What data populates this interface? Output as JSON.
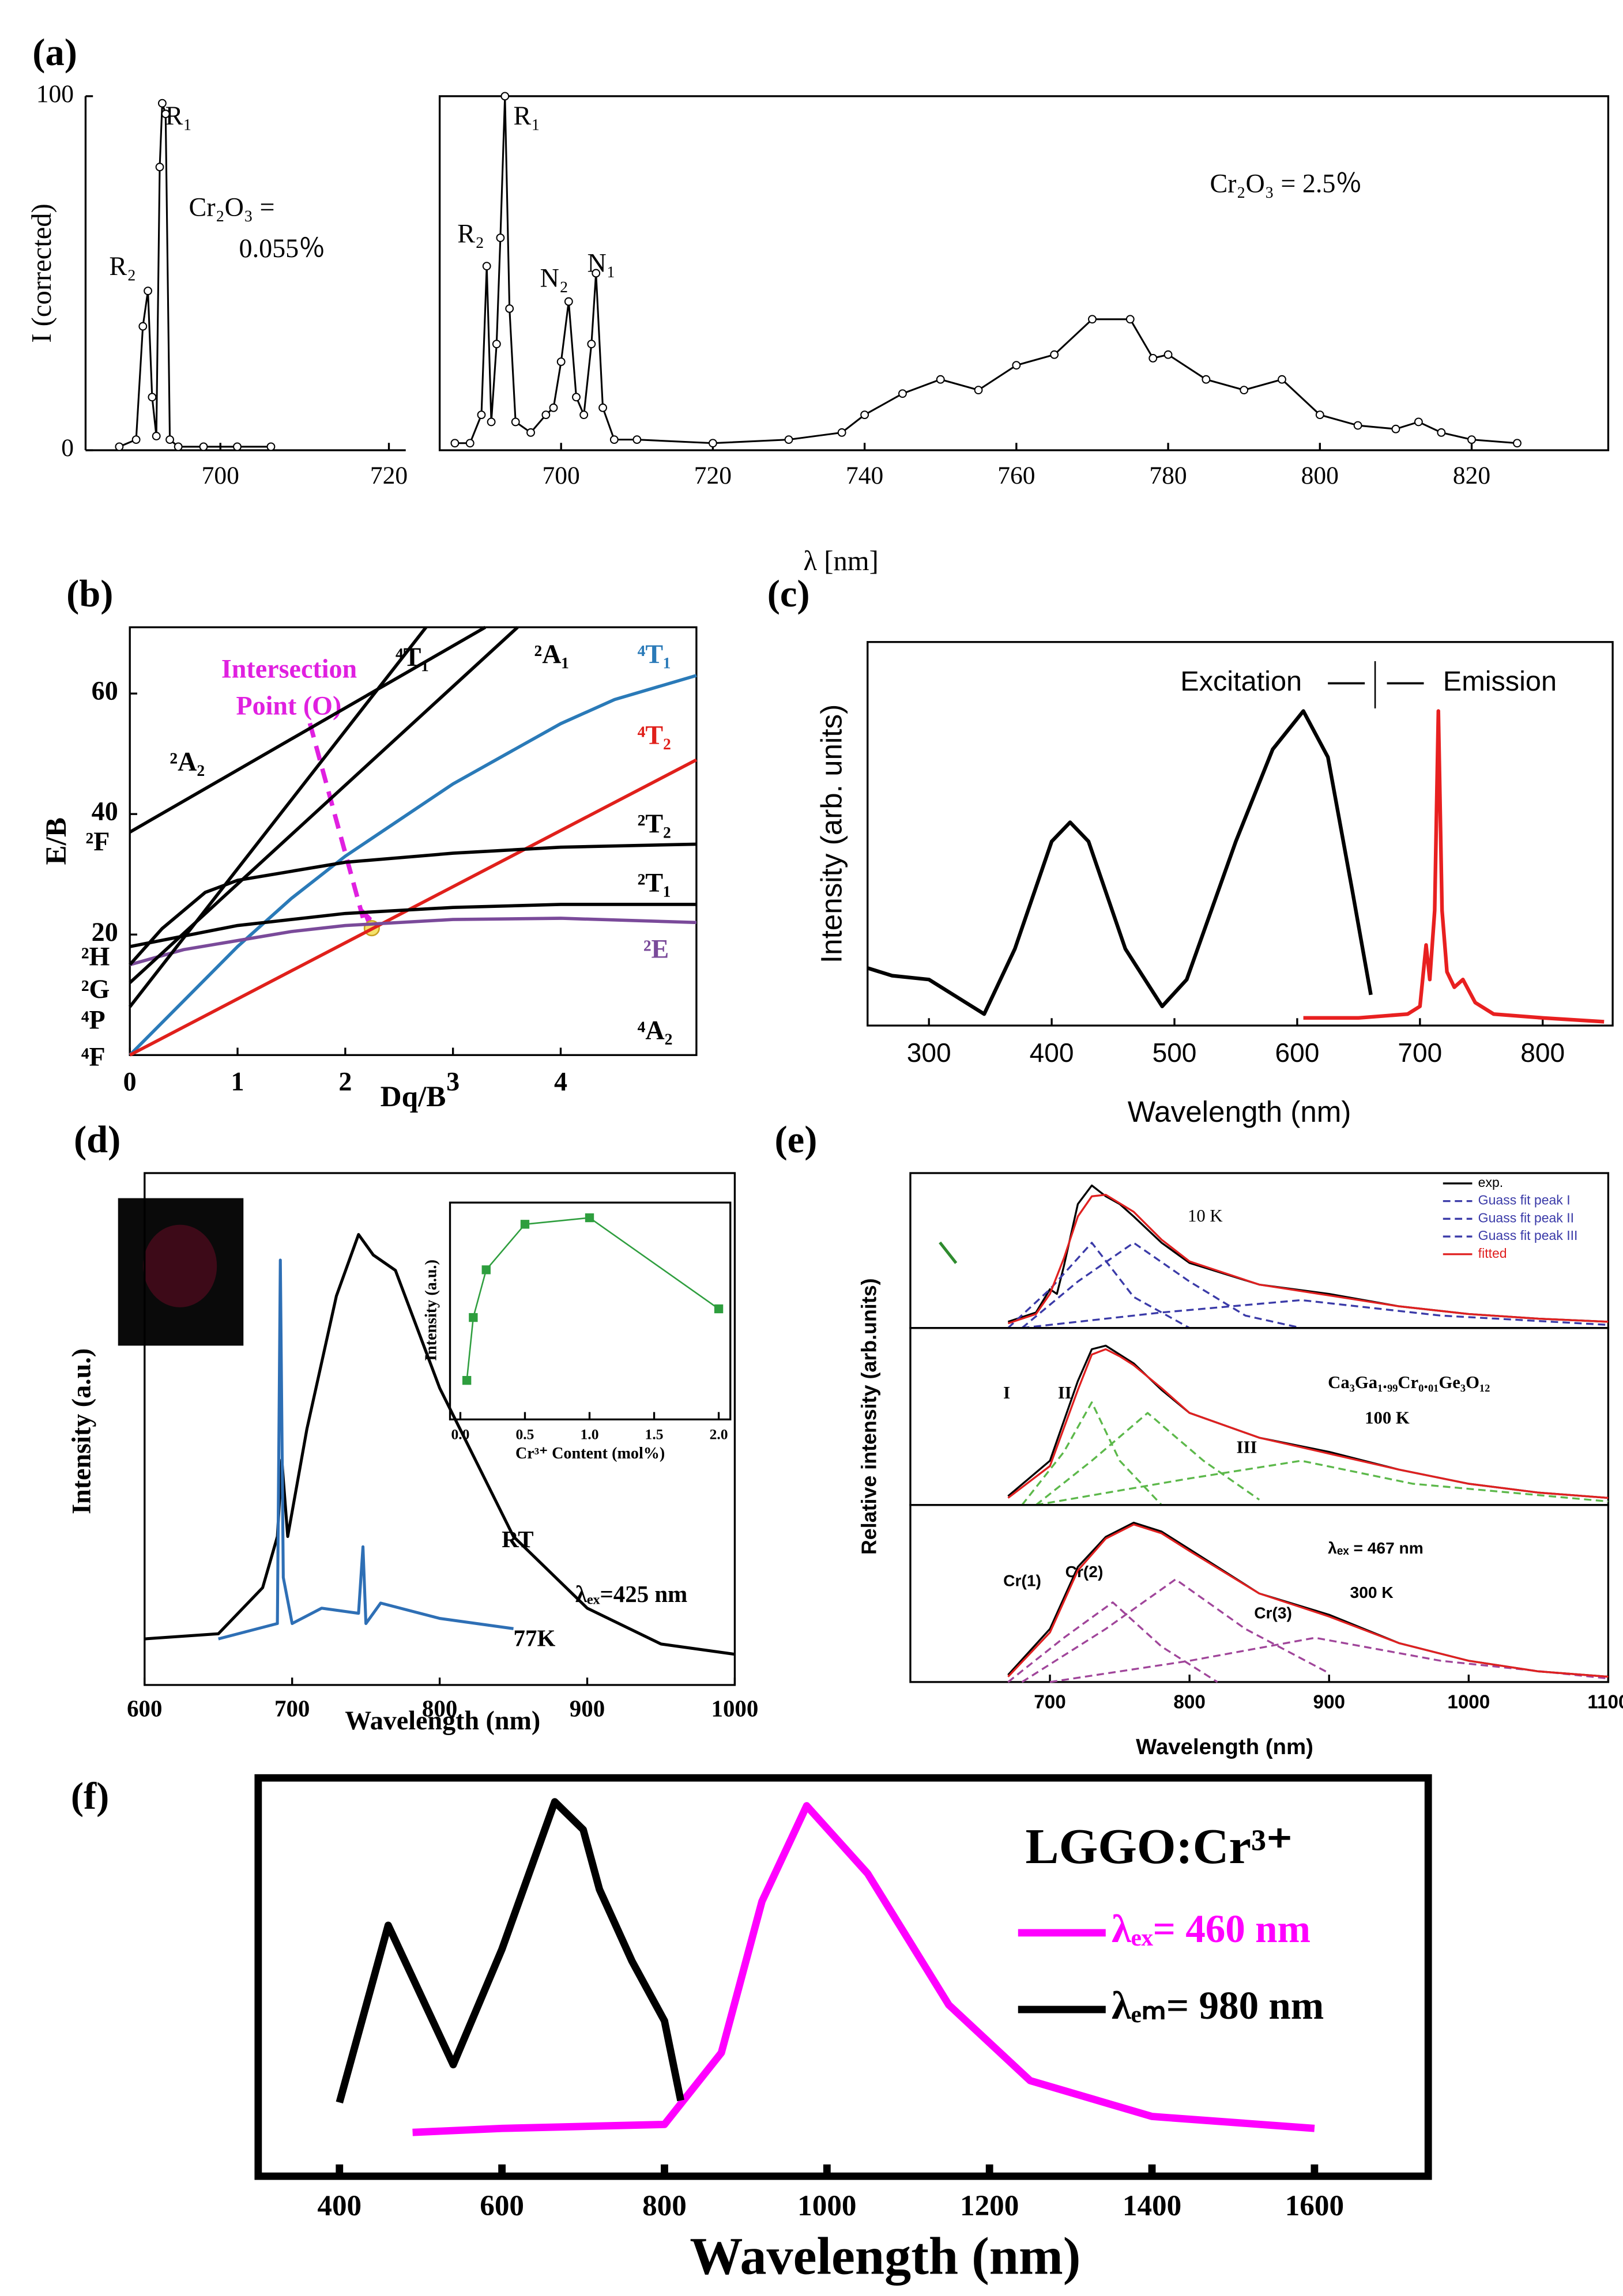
{
  "chart_data": [
    {
      "type": "line",
      "panel": "(a)",
      "ylabel": "I (corrected)",
      "xlim": [
        684,
        722
      ],
      "ylim": [
        0,
        100
      ],
      "xticks": [
        700,
        720
      ],
      "yticks": [
        0,
        100
      ],
      "annotations": [
        "R₁",
        "R₂",
        "Cr₂O₃ =",
        "0.055％"
      ],
      "series": [
        {
          "color": "#000",
          "marker": "circle",
          "x": [
            688,
            690,
            690.8,
            691.4,
            691.9,
            692.4,
            692.8,
            693.1,
            693.5,
            694,
            695,
            698,
            702,
            706
          ],
          "values": [
            1,
            3,
            35,
            45,
            15,
            4,
            80,
            98,
            95,
            3,
            1,
            1,
            1,
            1
          ]
        }
      ]
    },
    {
      "type": "line",
      "xlabel": "λ [nm]",
      "xlim": [
        684,
        838
      ],
      "ylim": [
        0,
        100
      ],
      "xticks": [
        700,
        720,
        740,
        760,
        780,
        800,
        820
      ],
      "annotations": [
        "R₁",
        "R₂",
        "N₂",
        "N₁",
        "Cr₂O₃ = 2.5％"
      ],
      "series": [
        {
          "color": "#000",
          "marker": "circle",
          "x": [
            686,
            688,
            689.5,
            690.2,
            690.8,
            691.5,
            692,
            692.6,
            693.2,
            694,
            696,
            698,
            699,
            700,
            701,
            702,
            703,
            704,
            704.6,
            705.5,
            707,
            710,
            720,
            730,
            737,
            740,
            745,
            750,
            755,
            760,
            765,
            770,
            775,
            778,
            780,
            785,
            790,
            795,
            800,
            805,
            810,
            813,
            816,
            820,
            826
          ],
          "values": [
            2,
            2,
            10,
            52,
            8,
            30,
            60,
            100,
            40,
            8,
            5,
            10,
            12,
            25,
            42,
            15,
            10,
            30,
            50,
            12,
            3,
            3,
            2,
            3,
            5,
            10,
            16,
            20,
            17,
            24,
            27,
            37,
            37,
            26,
            27,
            20,
            17,
            20,
            10,
            7,
            6,
            8,
            5,
            3,
            2
          ]
        }
      ]
    },
    {
      "type": "line",
      "panel": "(b)",
      "xlabel": "Dq/B",
      "ylabel": "E/B",
      "xlim": [
        0,
        5.26
      ],
      "ylim": [
        0,
        71
      ],
      "xticks": [
        0,
        1,
        2,
        3,
        4
      ],
      "yticks": [
        20,
        40,
        60
      ],
      "annotations": [
        "⁴T₁",
        "²A₁",
        {
          "text": "⁴T₁",
          "color": "#2a7ab8"
        },
        {
          "text": "Intersection",
          "color": "#e020e0"
        },
        {
          "text": "Point (O)",
          "color": "#e020e0"
        },
        {
          "text": "⁴T₂",
          "color": "#e0201b"
        },
        "²A₂",
        "²F",
        "²T₂",
        "²T₁",
        "²H",
        {
          "text": "²E",
          "color": "#7a4a9a"
        },
        "²G",
        "⁴P",
        "⁴A₂",
        "⁴F"
      ],
      "series": [
        {
          "color": "#2a7ab8",
          "x": [
            0,
            0.5,
            1,
            1.5,
            2,
            2.5,
            3,
            3.5,
            4,
            4.5,
            5.26
          ],
          "values": [
            0,
            9,
            18,
            26,
            33,
            39,
            45,
            50,
            55,
            59,
            63
          ]
        },
        {
          "color": "#e0201b",
          "x": [
            0,
            5.26
          ],
          "values": [
            0,
            49
          ]
        },
        {
          "color": "#7a4a9a",
          "x": [
            0,
            0.5,
            1,
            1.5,
            2,
            3,
            4,
            5.26
          ],
          "values": [
            15,
            17.5,
            19,
            20.5,
            21.5,
            22.5,
            22.7,
            22
          ]
        },
        {
          "color": "#000",
          "x": [
            0,
            1,
            2,
            3,
            4,
            5.26
          ],
          "values": [
            18,
            21.5,
            23.5,
            24.5,
            25,
            25
          ]
        },
        {
          "color": "#000",
          "x": [
            0,
            0.3,
            0.7,
            1,
            1.5,
            2,
            3,
            4,
            5.26
          ],
          "values": [
            15,
            21,
            27,
            29,
            30.5,
            32,
            33.5,
            34.5,
            35
          ]
        },
        {
          "color": "#000",
          "x": [
            0,
            3.3
          ],
          "values": [
            37,
            71
          ]
        },
        {
          "color": "#000",
          "x": [
            0,
            2.75
          ],
          "values": [
            8,
            71
          ]
        },
        {
          "color": "#000",
          "x": [
            0,
            3.6
          ],
          "values": [
            12,
            71
          ]
        }
      ]
    },
    {
      "type": "line",
      "panel": "(c)",
      "xlabel": "Wavelength (nm)",
      "ylabel": "Intensity (arb. units)",
      "xlim": [
        250,
        857
      ],
      "ylim": [
        0,
        100
      ],
      "xticks": [
        300,
        400,
        500,
        600,
        700,
        800
      ],
      "annotations": [
        "Excitation",
        "Emission"
      ],
      "series": [
        {
          "color": "#000",
          "x": [
            250,
            270,
            300,
            330,
            345,
            370,
            400,
            415,
            430,
            460,
            490,
            510,
            550,
            580,
            605,
            625,
            645,
            660
          ],
          "values": [
            15,
            13,
            12,
            6,
            3,
            20,
            48,
            53,
            48,
            20,
            5,
            12,
            48,
            72,
            82,
            70,
            35,
            8
          ]
        },
        {
          "color": "#e82020",
          "x": [
            605,
            650,
            690,
            700,
            705,
            708,
            712,
            715,
            718,
            722,
            728,
            735,
            745,
            760,
            800,
            850
          ],
          "values": [
            2,
            2,
            3,
            5,
            21,
            12,
            30,
            82,
            30,
            14,
            10,
            12,
            6,
            3,
            2,
            1
          ]
        }
      ]
    },
    {
      "type": "line",
      "panel": "(d)",
      "xlabel": "Wavelength (nm)",
      "ylabel": "Intensity (a.u.)",
      "xlim": [
        600,
        1000
      ],
      "ylim": [
        0,
        100
      ],
      "xticks": [
        600,
        700,
        800,
        900,
        1000
      ],
      "annotations": [
        "RT",
        "77K",
        "λₑₓ=425 nm"
      ],
      "series": [
        {
          "color": "#000",
          "x": [
            600,
            650,
            680,
            690,
            693,
            697,
            710,
            730,
            745,
            755,
            770,
            800,
            850,
            900,
            950,
            1000
          ],
          "values": [
            9,
            10,
            19,
            29,
            44,
            29,
            50,
            76,
            88,
            84,
            81,
            58,
            29,
            15,
            8,
            6
          ]
        },
        {
          "color": "#2e6fb5",
          "x": [
            650,
            690,
            692,
            694,
            700,
            720,
            745,
            748,
            750,
            760,
            800,
            850
          ],
          "values": [
            9,
            12,
            83,
            21,
            12,
            15,
            14,
            27,
            12,
            16,
            13,
            11
          ]
        }
      ]
    },
    {
      "type": "line",
      "xlabel": "Cr³⁺ Content (mol%)",
      "ylabel": "Intensity (a.u.)",
      "xlim": [
        -0.08,
        2.09
      ],
      "ylim": [
        0,
        100
      ],
      "xticks": [
        {
          "value": 0,
          "label": "0.0"
        },
        {
          "value": 0.5,
          "label": "0.5"
        },
        {
          "value": 1,
          "label": "1.0"
        },
        {
          "value": 1.5,
          "label": "1.5"
        },
        {
          "value": 2,
          "label": "2.0"
        }
      ],
      "series": [
        {
          "color": "#2e9e3e",
          "marker": "square",
          "x": [
            0.05,
            0.1,
            0.2,
            0.5,
            1.0,
            2.0
          ],
          "values": [
            18,
            47,
            69,
            90,
            93,
            51
          ]
        }
      ]
    },
    {
      "type": "line",
      "panel": "(e)",
      "xlim": [
        600,
        1100
      ],
      "ylim": [
        0,
        100
      ],
      "annotations": [
        "10 K"
      ],
      "legend": "upper right",
      "series": [
        {
          "name": "exp.",
          "color": "#000",
          "x": [
            670,
            690,
            700,
            705,
            710,
            720,
            730,
            740,
            750,
            760,
            780,
            800,
            850,
            900,
            950,
            1000,
            1050,
            1100
          ],
          "values": [
            4,
            10,
            25,
            22,
            40,
            80,
            92,
            85,
            80,
            72,
            55,
            42,
            28,
            22,
            14,
            9,
            6,
            4
          ]
        },
        {
          "name": "Guass fit peak I",
          "color": "#3a3aa8",
          "dash": true,
          "x": [
            670,
            700,
            730,
            760,
            800
          ],
          "values": [
            0,
            25,
            55,
            20,
            0
          ]
        },
        {
          "name": "Guass fit peak II",
          "color": "#3a3aa8",
          "dash": true,
          "x": [
            680,
            720,
            760,
            800,
            840,
            880
          ],
          "values": [
            0,
            30,
            55,
            30,
            8,
            0
          ]
        },
        {
          "name": "Guass fit peak III",
          "color": "#3a3aa8",
          "dash": true,
          "x": [
            680,
            780,
            880,
            980,
            1100
          ],
          "values": [
            0,
            10,
            18,
            8,
            2
          ]
        },
        {
          "name": "fitted",
          "color": "#e02020",
          "x": [
            670,
            690,
            700,
            710,
            720,
            730,
            740,
            760,
            780,
            800,
            850,
            900,
            950,
            1000,
            1050,
            1100
          ],
          "values": [
            3,
            9,
            22,
            45,
            72,
            85,
            86,
            75,
            57,
            43,
            28,
            21,
            14,
            9,
            6,
            4
          ]
        }
      ]
    },
    {
      "type": "line",
      "ylabel": "Relative intensity (arb.units)",
      "xlim": [
        600,
        1100
      ],
      "ylim": [
        0,
        100
      ],
      "annotations": [
        "Ca₃Ga₁.₉₉Cr₀.₀₁Ge₃O₁₂",
        "100 K",
        "I",
        "II",
        "III"
      ],
      "series": [
        {
          "color": "#000",
          "x": [
            670,
            700,
            720,
            730,
            740,
            750,
            760,
            780,
            800,
            850,
            900,
            950,
            1000,
            1050,
            1100
          ],
          "values": [
            5,
            25,
            70,
            88,
            90,
            85,
            80,
            65,
            52,
            38,
            30,
            20,
            12,
            7,
            4
          ]
        },
        {
          "color": "#5cb84a",
          "dash": true,
          "x": [
            680,
            710,
            730,
            750,
            780
          ],
          "values": [
            0,
            30,
            58,
            25,
            0
          ]
        },
        {
          "color": "#5cb84a",
          "dash": true,
          "x": [
            690,
            730,
            770,
            810,
            850
          ],
          "values": [
            0,
            25,
            52,
            25,
            3
          ]
        },
        {
          "color": "#5cb84a",
          "dash": true,
          "x": [
            690,
            800,
            880,
            960,
            1100
          ],
          "values": [
            0,
            15,
            25,
            12,
            2
          ]
        },
        {
          "color": "#e02020",
          "x": [
            670,
            700,
            720,
            730,
            740,
            750,
            760,
            780,
            800,
            850,
            900,
            950,
            1000,
            1050,
            1100
          ],
          "values": [
            4,
            22,
            65,
            85,
            88,
            84,
            79,
            66,
            52,
            38,
            29,
            20,
            12,
            7,
            4
          ]
        }
      ]
    },
    {
      "type": "line",
      "xlabel": "Wavelength (nm)",
      "xlim": [
        600,
        1100
      ],
      "ylim": [
        0,
        100
      ],
      "xticks": [
        700,
        800,
        900,
        1000,
        1100
      ],
      "annotations": [
        "λₑₓ = 467 nm",
        "300 K",
        "Cr(1)",
        "Cr(2)",
        "Cr(3)"
      ],
      "series": [
        {
          "color": "#000",
          "x": [
            670,
            700,
            720,
            740,
            760,
            780,
            800,
            850,
            900,
            950,
            1000,
            1050,
            1100
          ],
          "values": [
            4,
            30,
            65,
            82,
            90,
            85,
            75,
            50,
            38,
            22,
            12,
            6,
            3
          ]
        },
        {
          "color": "#a0459a",
          "dash": true,
          "x": [
            670,
            710,
            745,
            780,
            820
          ],
          "values": [
            0,
            25,
            45,
            20,
            0
          ]
        },
        {
          "color": "#a0459a",
          "dash": true,
          "x": [
            680,
            740,
            790,
            840,
            900
          ],
          "values": [
            0,
            30,
            58,
            30,
            5
          ]
        },
        {
          "color": "#a0459a",
          "dash": true,
          "x": [
            700,
            800,
            890,
            980,
            1100
          ],
          "values": [
            0,
            12,
            25,
            12,
            2
          ]
        },
        {
          "color": "#e02020",
          "x": [
            670,
            700,
            720,
            740,
            760,
            780,
            800,
            850,
            900,
            950,
            1000,
            1050,
            1100
          ],
          "values": [
            3,
            28,
            63,
            81,
            89,
            84,
            74,
            50,
            37,
            22,
            12,
            6,
            3
          ]
        }
      ]
    },
    {
      "type": "line",
      "panel": "(f)",
      "title": "LGGO:Cr³⁺",
      "xlabel": "Wavelength (nm)",
      "xlim": [
        300,
        1740
      ],
      "ylim": [
        0,
        100
      ],
      "xticks": [
        400,
        600,
        800,
        1000,
        1200,
        1400,
        1600
      ],
      "legend": "upper right",
      "series": [
        {
          "name": "λₑₓ= 460 nm",
          "color": "#ff00ff",
          "x": [
            490,
            600,
            800,
            870,
            920,
            975,
            1050,
            1150,
            1250,
            1400,
            1600
          ],
          "values": [
            11,
            12,
            13,
            31,
            69,
            93,
            76,
            43,
            24,
            15,
            12
          ]
        },
        {
          "name": "λₑₘ= 980 nm",
          "color": "#000",
          "x": [
            400,
            460,
            540,
            600,
            665,
            700,
            720,
            760,
            800,
            820
          ],
          "values": [
            18.5,
            63,
            28,
            57,
            94,
            87,
            72,
            54,
            39,
            19
          ]
        }
      ]
    }
  ]
}
